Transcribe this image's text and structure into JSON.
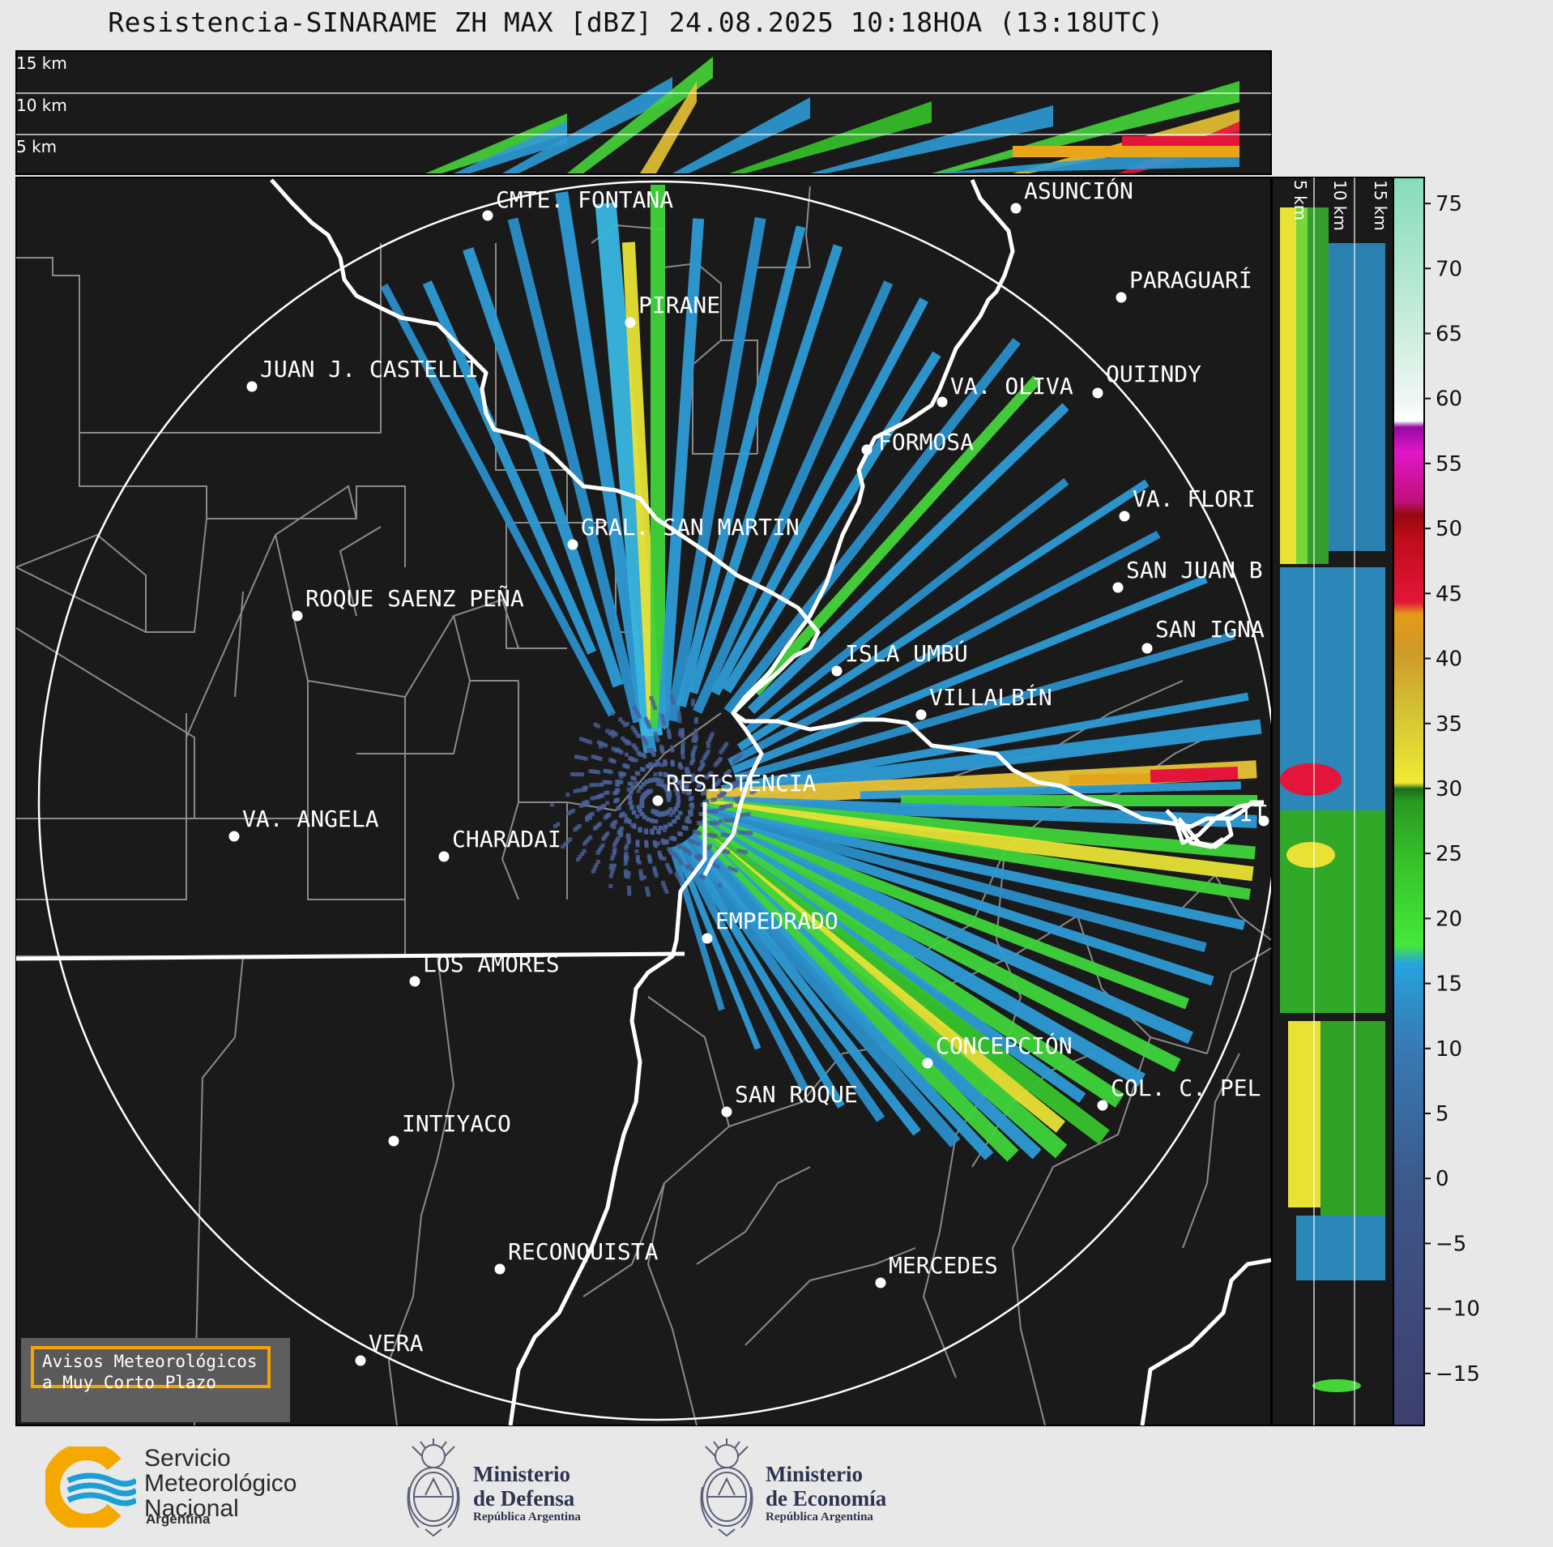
{
  "title": "Resistencia-SINARAME ZH MAX [dBZ] 24.08.2025 10:18HOA (13:18UTC)",
  "top_panel": {
    "height_labels": [
      "15 km",
      "10 km",
      "5 km"
    ]
  },
  "side_panel": {
    "height_labels": [
      "5 km",
      "10 km",
      "15 km"
    ]
  },
  "cities": [
    {
      "name": "CMTE. FONTANA"
    },
    {
      "name": "ASUNCIÓN"
    },
    {
      "name": "PARAGUARÍ"
    },
    {
      "name": "PIRANE"
    },
    {
      "name": "JUAN J. CASTELLI"
    },
    {
      "name": "VA. OLIVA"
    },
    {
      "name": "QUIINDY"
    },
    {
      "name": "FORMOSA"
    },
    {
      "name": "VA. FLORI"
    },
    {
      "name": "GRAL. SAN MARTIN"
    },
    {
      "name": "SAN JUAN B"
    },
    {
      "name": "ROQUE SAENZ PEÑA"
    },
    {
      "name": "SAN IGNA"
    },
    {
      "name": "ISLA UMBÚ"
    },
    {
      "name": "VILLALBÍN"
    },
    {
      "name": "RESISTENCIA"
    },
    {
      "name": "VA. ANGELA"
    },
    {
      "name": "CHARADAI"
    },
    {
      "name": "IT"
    },
    {
      "name": "EMPEDRADO"
    },
    {
      "name": "LOS AMORES"
    },
    {
      "name": "CONCEPCIÓN"
    },
    {
      "name": "COL. C. PEL"
    },
    {
      "name": "SAN ROQUE"
    },
    {
      "name": "INTIYACO"
    },
    {
      "name": "RECONQUISTA"
    },
    {
      "name": "MERCEDES"
    },
    {
      "name": "VERA"
    }
  ],
  "colorbar": {
    "ticks": [
      "75",
      "70",
      "65",
      "60",
      "55",
      "50",
      "45",
      "40",
      "35",
      "30",
      "25",
      "20",
      "15",
      "10",
      "5",
      "0",
      "−5",
      "−10",
      "−15"
    ],
    "min": -19,
    "max": 77,
    "unit": "dBZ"
  },
  "warning_box": {
    "line1": "Avisos Meteorológicos",
    "line2": "a Muy Corto Plazo"
  },
  "logos": {
    "smn": {
      "line1": "Servicio",
      "line2": "Meteorológico",
      "line3": "Nacional",
      "sub": "Argentina"
    },
    "defensa": {
      "line1": "Ministerio",
      "line2": "de Defensa",
      "sub": "República Argentina"
    },
    "economia": {
      "line1": "Ministerio",
      "line2": "de Economía",
      "sub": "República Argentina"
    }
  },
  "colors": {
    "background": "#1a1a1a",
    "page": "#e8e8e8",
    "borders": "#888888",
    "rivers": "#ffffff",
    "accent_orange": "#f5a400",
    "smn_blue": "#1a9fd6",
    "smn_yellow": "#f5a800"
  }
}
